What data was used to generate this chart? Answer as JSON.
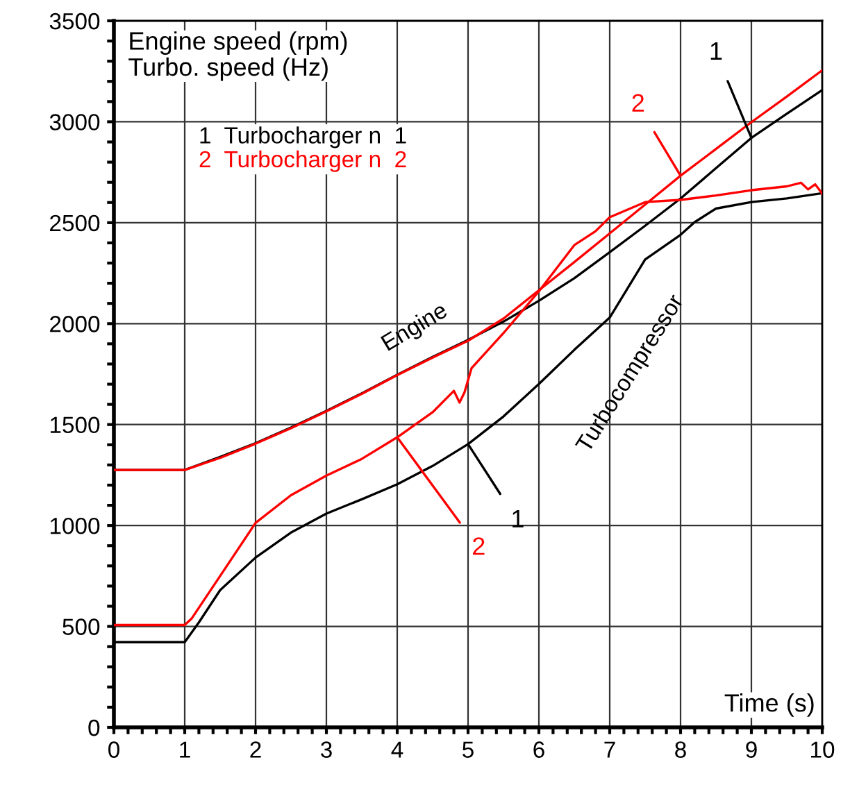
{
  "chart_data": {
    "type": "line",
    "ylabel": "Engine speed (rpm)\nTurbo. speed (Hz)",
    "xlabel": "Time (s)",
    "xlim": [
      0,
      10
    ],
    "ylim": [
      0,
      3500
    ],
    "xticks": [
      0,
      {
        "value": 0.2,
        "label": null
      },
      {
        "value": 0.4,
        "label": null
      },
      {
        "value": 0.6,
        "label": null
      },
      {
        "value": 0.8,
        "label": null
      },
      1,
      {
        "value": 1.2,
        "label": null
      },
      {
        "value": 1.4,
        "label": null
      },
      {
        "value": 1.6,
        "label": null
      },
      {
        "value": 1.8,
        "label": null
      },
      2,
      {
        "value": 2.2,
        "label": null
      },
      {
        "value": 2.4,
        "label": null
      },
      {
        "value": 2.6,
        "label": null
      },
      {
        "value": 2.8,
        "label": null
      },
      3,
      {
        "value": 3.2,
        "label": null
      },
      {
        "value": 3.4,
        "label": null
      },
      {
        "value": 3.6,
        "label": null
      },
      {
        "value": 3.8,
        "label": null
      },
      4,
      {
        "value": 4.2,
        "label": null
      },
      {
        "value": 4.4,
        "label": null
      },
      {
        "value": 4.6,
        "label": null
      },
      {
        "value": 4.8,
        "label": null
      },
      5,
      {
        "value": 5.2,
        "label": null
      },
      {
        "value": 5.4,
        "label": null
      },
      {
        "value": 5.6,
        "label": null
      },
      {
        "value": 5.8,
        "label": null
      },
      6,
      {
        "value": 6.2,
        "label": null
      },
      {
        "value": 6.4,
        "label": null
      },
      {
        "value": 6.6,
        "label": null
      },
      {
        "value": 6.8,
        "label": null
      },
      7,
      {
        "value": 7.2,
        "label": null
      },
      {
        "value": 7.4,
        "label": null
      },
      {
        "value": 7.6,
        "label": null
      },
      {
        "value": 7.8,
        "label": null
      },
      8,
      {
        "value": 8.2,
        "label": null
      },
      {
        "value": 8.4,
        "label": null
      },
      {
        "value": 8.6,
        "label": null
      },
      {
        "value": 8.8,
        "label": null
      },
      9,
      {
        "value": 9.2,
        "label": null
      },
      {
        "value": 9.4,
        "label": null
      },
      {
        "value": 9.6,
        "label": null
      },
      {
        "value": 9.8,
        "label": null
      },
      10
    ],
    "yticks": [
      0,
      {
        "value": 100,
        "label": null
      },
      {
        "value": 200,
        "label": null
      },
      {
        "value": 300,
        "label": null
      },
      {
        "value": 400,
        "label": null
      },
      500,
      {
        "value": 600,
        "label": null
      },
      {
        "value": 700,
        "label": null
      },
      {
        "value": 800,
        "label": null
      },
      {
        "value": 900,
        "label": null
      },
      1000,
      {
        "value": 1100,
        "label": null
      },
      {
        "value": 1200,
        "label": null
      },
      {
        "value": 1300,
        "label": null
      },
      {
        "value": 1400,
        "label": null
      },
      1500,
      {
        "value": 1600,
        "label": null
      },
      {
        "value": 1700,
        "label": null
      },
      {
        "value": 1800,
        "label": null
      },
      {
        "value": 1900,
        "label": null
      },
      2000,
      {
        "value": 2100,
        "label": null
      },
      {
        "value": 2200,
        "label": null
      },
      {
        "value": 2300,
        "label": null
      },
      {
        "value": 2400,
        "label": null
      },
      2500,
      {
        "value": 2600,
        "label": null
      },
      {
        "value": 2700,
        "label": null
      },
      {
        "value": 2800,
        "label": null
      },
      {
        "value": 2900,
        "label": null
      },
      3000,
      {
        "value": 3100,
        "label": null
      },
      {
        "value": 3200,
        "label": null
      },
      {
        "value": 3300,
        "label": null
      },
      {
        "value": 3400,
        "label": null
      },
      3500
    ],
    "grid": true,
    "legend": "top left",
    "marker": "none",
    "line_style": "solid",
    "series": [
      {
        "name": "1  Turbocharger n  1",
        "color": "#000000",
        "x": [
          0,
          1,
          1.5,
          2,
          2.5,
          3,
          3.5,
          4,
          4.5,
          5,
          5.5,
          6,
          6.5,
          7,
          7.5,
          8,
          8.5,
          9,
          9.5,
          10
        ],
        "values": [
          1275,
          1275,
          1340,
          1408,
          1485,
          1568,
          1655,
          1747,
          1835,
          1919,
          2010,
          2113,
          2225,
          2354,
          2485,
          2620,
          2770,
          2920,
          3040,
          3157
        ]
      },
      {
        "name": "2  Turbocharger n  2",
        "color": "#ff0000",
        "x": [
          0,
          1,
          1.5,
          2,
          2.5,
          3,
          3.5,
          4,
          4.5,
          5,
          5.5,
          6,
          6.5,
          7,
          7.5,
          8,
          8.5,
          9,
          9.5,
          10
        ],
        "values": [
          1275,
          1275,
          1335,
          1405,
          1482,
          1565,
          1652,
          1745,
          1832,
          1915,
          2025,
          2165,
          2305,
          2447,
          2590,
          2733,
          2865,
          2998,
          3125,
          3255
        ]
      },
      {
        "color": "#000000",
        "x": [
          0,
          1,
          1.2,
          1.5,
          2,
          2.5,
          3,
          3.5,
          4,
          4.5,
          5,
          5.5,
          6,
          6.5,
          7,
          7.5,
          8,
          8.2,
          8.5,
          9,
          9.5,
          10
        ],
        "values": [
          422,
          422,
          520,
          680,
          841,
          965,
          1059,
          1130,
          1204,
          1295,
          1403,
          1540,
          1701,
          1870,
          2030,
          2318,
          2440,
          2503,
          2570,
          2602,
          2620,
          2646
        ]
      },
      {
        "color": "#ff0000",
        "x": [
          0,
          1,
          1.1,
          1.5,
          2,
          2.5,
          3,
          3.5,
          4,
          4.5,
          4.8,
          4.88,
          4.95,
          5.05,
          5.5,
          6,
          6.5,
          6.8,
          7,
          7.5,
          8,
          8.5,
          9,
          9.5,
          9.7,
          9.8,
          9.9,
          10
        ],
        "values": [
          507,
          507,
          540,
          750,
          1013,
          1150,
          1247,
          1330,
          1437,
          1561,
          1667,
          1609,
          1660,
          1780,
          1953,
          2160,
          2389,
          2458,
          2527,
          2602,
          2613,
          2635,
          2661,
          2680,
          2698,
          2665,
          2690,
          2644
        ]
      }
    ],
    "annotations": [
      "Engine",
      "Turbocompressor",
      {
        "text": "1",
        "x": 9.0,
        "y": 2920
      },
      {
        "text": "2",
        "x": 8.0,
        "y": 2733
      },
      {
        "text": "1",
        "x": 5.0,
        "y": 1403
      },
      {
        "text": "2",
        "x": 4.0,
        "y": 1437
      }
    ]
  }
}
